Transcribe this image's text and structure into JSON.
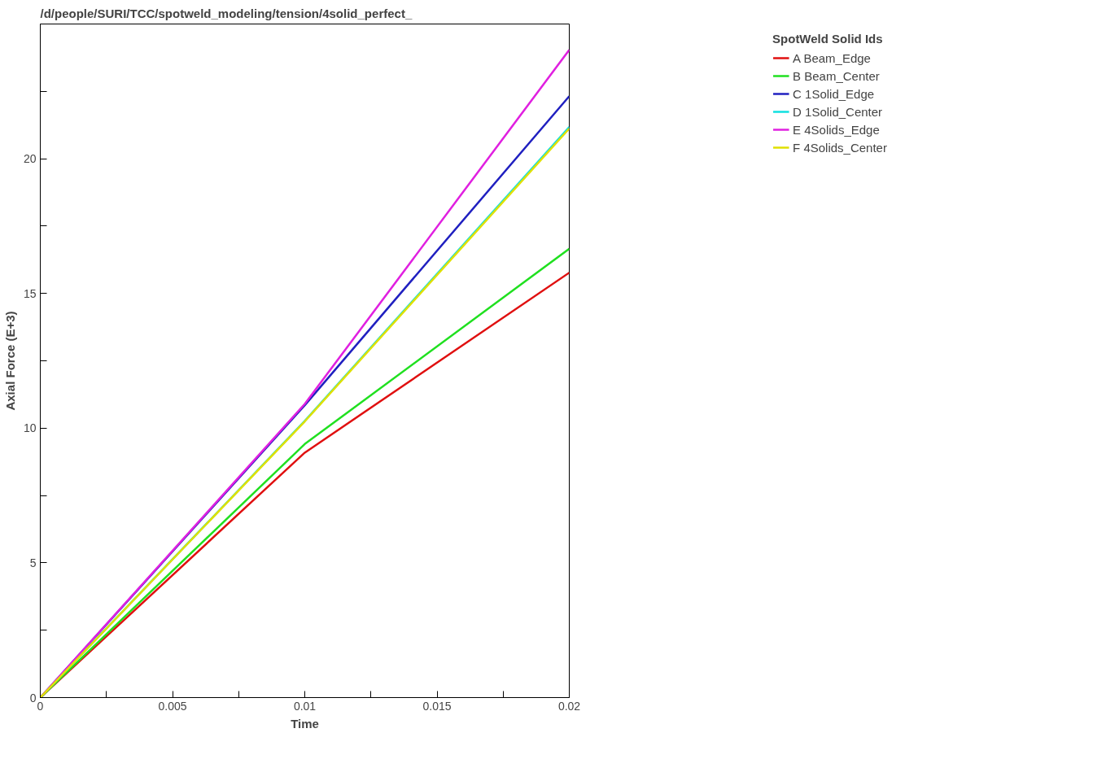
{
  "chart_data": {
    "type": "line",
    "title": "/d/people/SURI/TCC/spotweld_modeling/tension/4solid_perfect_",
    "xlabel": "Time",
    "ylabel": "Axial Force (E+3)",
    "legend_title": "SpotWeld Solid Ids",
    "x": [
      0,
      0.01,
      0.02
    ],
    "series": [
      {
        "name": "A Beam_Edge",
        "color": "#e01010",
        "values": [
          0,
          9.09,
          15.77
        ]
      },
      {
        "name": "B Beam_Center",
        "color": "#20e020",
        "values": [
          0,
          9.41,
          16.66
        ]
      },
      {
        "name": "C 1Solid_Edge",
        "color": "#2020c0",
        "values": [
          0,
          10.85,
          22.32
        ]
      },
      {
        "name": "D 1Solid_Center",
        "color": "#10e0e0",
        "values": [
          0,
          10.27,
          21.18
        ]
      },
      {
        "name": "E 4Solids_Edge",
        "color": "#e020e0",
        "values": [
          0,
          10.9,
          24.04
        ]
      },
      {
        "name": "F 4Solids_Center",
        "color": "#e0e000",
        "values": [
          0,
          10.25,
          21.12
        ]
      }
    ],
    "xlim": [
      0,
      0.02
    ],
    "ylim": [
      0,
      25
    ],
    "xticks": [
      0,
      {
        "value": 0.0025,
        "label": null
      },
      0.005,
      {
        "value": 0.0075,
        "label": null
      },
      0.01,
      {
        "value": 0.0125,
        "label": null
      },
      0.015,
      {
        "value": 0.0175,
        "label": null
      },
      0.02
    ],
    "yticks": [
      0,
      {
        "value": 2.5,
        "label": null
      },
      5,
      {
        "value": 7.5,
        "label": null
      },
      10,
      {
        "value": 12.5,
        "label": null
      },
      15,
      {
        "value": 17.5,
        "label": null
      },
      20,
      {
        "value": 22.5,
        "label": null
      }
    ],
    "grid": false,
    "legend": "right",
    "marker": "none",
    "line_style": "solid"
  }
}
